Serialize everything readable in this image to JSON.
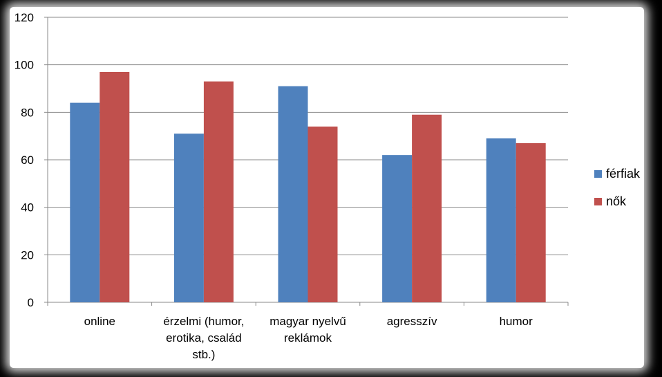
{
  "chart_data": {
    "type": "bar",
    "categories": [
      [
        "online"
      ],
      [
        "érzelmi (humor,",
        "erotika, család",
        "stb.)"
      ],
      [
        "magyar nyelvű",
        "reklámok"
      ],
      [
        "agresszív"
      ],
      [
        "humor"
      ]
    ],
    "series": [
      {
        "name": "férfiak",
        "color": "#4F81BD",
        "values": [
          84,
          71,
          91,
          62,
          69
        ]
      },
      {
        "name": "nők",
        "color": "#C0504D",
        "values": [
          97,
          93,
          74,
          79,
          67
        ]
      }
    ],
    "yticks": [
      0,
      20,
      40,
      60,
      80,
      100,
      120
    ],
    "ylim": [
      0,
      120
    ],
    "grid": true,
    "legend_position": "right",
    "title": "",
    "xlabel": "",
    "ylabel": ""
  }
}
